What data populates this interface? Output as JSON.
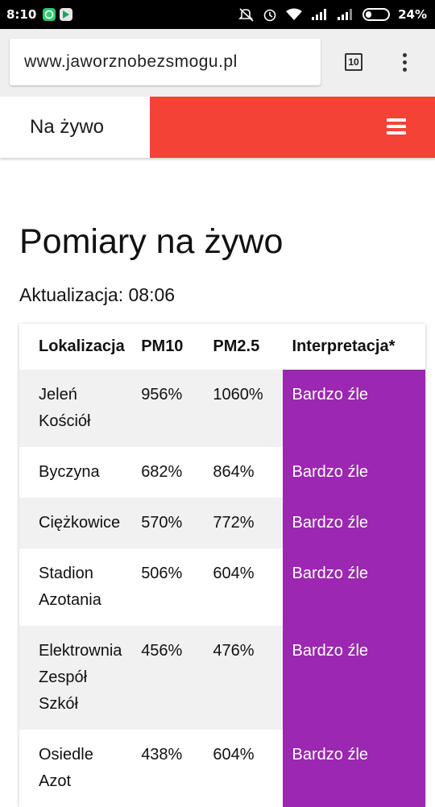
{
  "status_bar": {
    "time": "8:10",
    "battery": "24%",
    "icons": [
      "whatsapp-icon",
      "play-store-icon",
      "mute-icon",
      "alarm-icon",
      "wifi-icon",
      "signal-icon",
      "signal-icon",
      "battery-icon"
    ]
  },
  "browser": {
    "url": "www.jaworznobezsmogu.pl",
    "tab_count": "10"
  },
  "site_header": {
    "brand": "Na żywo",
    "accent_color": "#f44336"
  },
  "page": {
    "title": "Pomiary na żywo",
    "update_label": "Aktualizacja: 08:06"
  },
  "table": {
    "headers": [
      "Lokalizacja",
      "PM10",
      "PM2.5",
      "Interpretacja*"
    ],
    "interpretation_color": "#9c27b0",
    "rows": [
      {
        "location": [
          "Jeleń",
          "Kościół"
        ],
        "pm10": "956%",
        "pm25": "1060%",
        "interpretation": "Bardzo źle"
      },
      {
        "location": [
          "Byczyna"
        ],
        "pm10": "682%",
        "pm25": "864%",
        "interpretation": "Bardzo źle"
      },
      {
        "location": [
          "Ciężkowice"
        ],
        "pm10": "570%",
        "pm25": "772%",
        "interpretation": "Bardzo źle"
      },
      {
        "location": [
          "Stadion",
          "Azotania"
        ],
        "pm10": "506%",
        "pm25": "604%",
        "interpretation": "Bardzo źle"
      },
      {
        "location": [
          "Elektrownia",
          "Zespół",
          "Szkół"
        ],
        "pm10": "456%",
        "pm25": "476%",
        "interpretation": "Bardzo źle"
      },
      {
        "location": [
          "Osiedle",
          "Azot"
        ],
        "pm10": "438%",
        "pm25": "604%",
        "interpretation": "Bardzo źle"
      }
    ]
  }
}
